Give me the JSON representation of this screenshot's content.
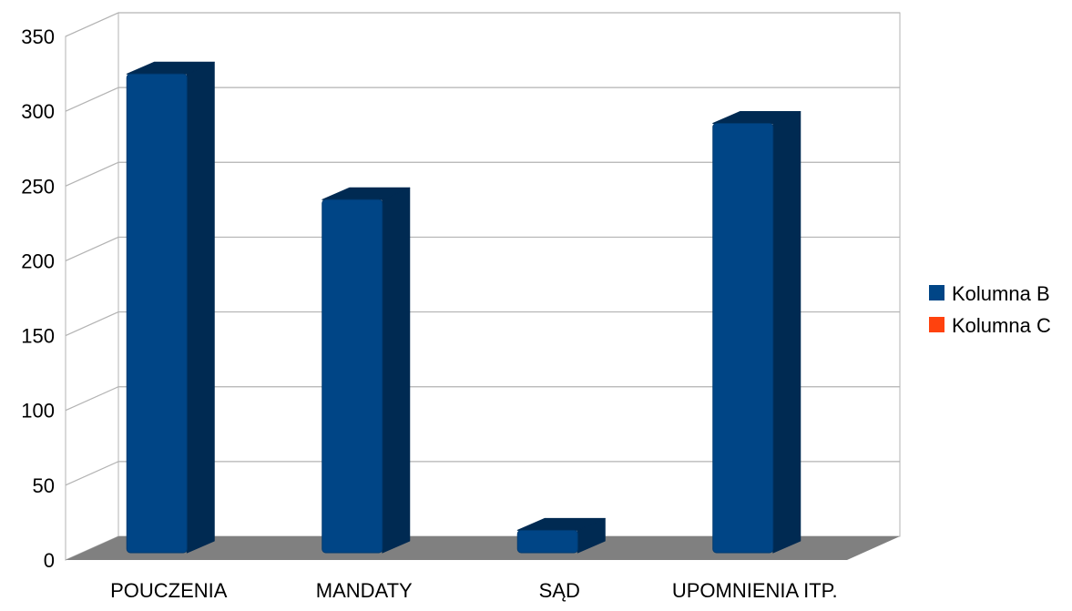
{
  "chart_data": {
    "type": "bar",
    "style": "3d-column",
    "categories": [
      "POUCZENIA",
      "MANDATY",
      "SĄD",
      "UPOMNIENIA ITP."
    ],
    "series": [
      {
        "name": "Kolumna B",
        "color": "#004586",
        "values": [
          320,
          236,
          15,
          287
        ]
      },
      {
        "name": "Kolumna C",
        "color": "#ff420e",
        "values": [
          0,
          0,
          0,
          0
        ]
      }
    ],
    "ylim": [
      0,
      350
    ],
    "yticks": [
      "0",
      "50",
      "100",
      "150",
      "200",
      "250",
      "300",
      "350"
    ],
    "grid": true,
    "legend": "right",
    "colors": {
      "floor": "#808080",
      "wall": "#ffffff",
      "gridline": "#b3b3b3",
      "bar_side": "#002a52"
    }
  }
}
